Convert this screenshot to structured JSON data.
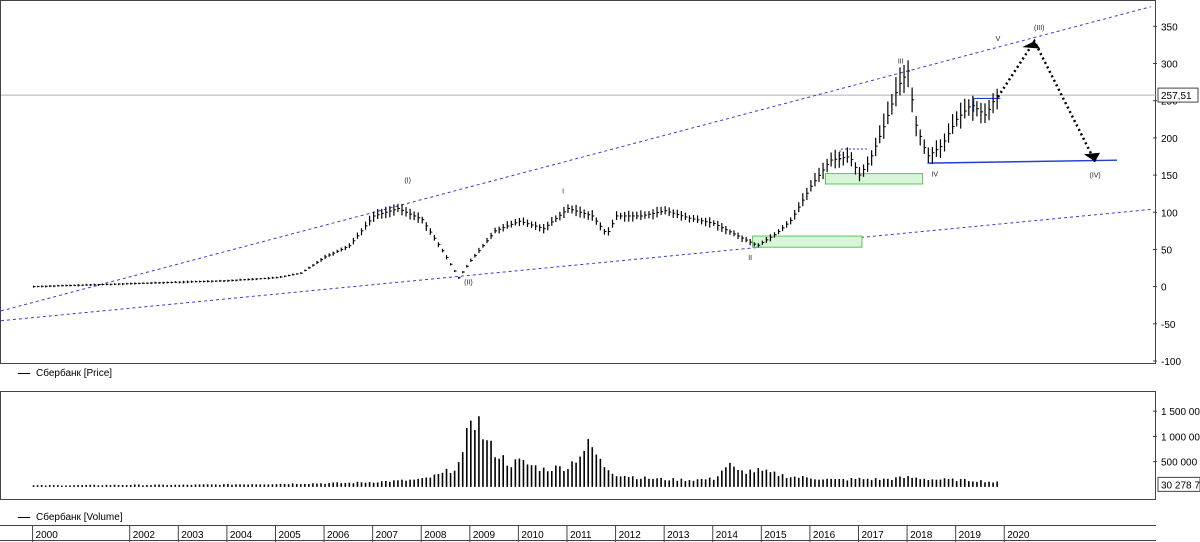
{
  "chart_data": [
    {
      "type": "bar",
      "series_name": "Сбербанк [Price]",
      "ylim": [
        -100,
        380
      ],
      "yticks": [
        -100,
        -50,
        0,
        50,
        100,
        150,
        200,
        250,
        300,
        350
      ],
      "ytick_labels": [
        "-100",
        "-50",
        "0",
        "50",
        "100",
        "150",
        "200",
        "250",
        "300",
        "350"
      ],
      "last_price_label": "257,51",
      "last_price": 257.51,
      "x": [
        2000.0,
        2001.0,
        2002.0,
        2003.0,
        2004.0,
        2005.0,
        2005.5,
        2006.0,
        2006.5,
        2007.0,
        2007.5,
        2008.0,
        2008.4,
        2008.75,
        2009.0,
        2009.5,
        2010.0,
        2010.5,
        2011.0,
        2011.5,
        2011.8,
        2012.0,
        2012.5,
        2013.0,
        2013.5,
        2014.0,
        2014.5,
        2014.9,
        2015.3,
        2015.6,
        2016.0,
        2016.4,
        2016.8,
        2017.0,
        2017.2,
        2017.5,
        2017.8,
        2018.0,
        2018.15,
        2018.4,
        2018.7,
        2019.0,
        2019.3,
        2019.6,
        2019.8
      ],
      "values": [
        0,
        2,
        4,
        6,
        8,
        12,
        18,
        40,
        55,
        95,
        105,
        90,
        50,
        12,
        35,
        75,
        88,
        78,
        105,
        95,
        70,
        95,
        95,
        102,
        92,
        85,
        68,
        55,
        72,
        90,
        135,
        170,
        175,
        150,
        168,
        215,
        270,
        290,
        220,
        175,
        190,
        225,
        245,
        230,
        255
      ],
      "wave_labels": [
        "(I)",
        "(II)",
        "I",
        "II",
        "III",
        "IV",
        "V",
        "(III)",
        "(IV)"
      ],
      "wave_label_x": [
        2007.7,
        2008.95,
        2010.9,
        2014.75,
        2017.85,
        2018.55,
        2019.85,
        2020.7,
        2021.85
      ],
      "wave_label_y": [
        140,
        3,
        125,
        36,
        300,
        148,
        330,
        345,
        147
      ]
    },
    {
      "type": "bar",
      "series_name": "Сбербанк [Volume]",
      "ylim": [
        -200000,
        1800000
      ],
      "yticks": [
        500000,
        1000000,
        1500000
      ],
      "ytick_labels": [
        "500 000",
        "1 000 000",
        "1 500 000"
      ],
      "last_volume_label": "30 278 7",
      "x": [
        2000.0,
        2001.0,
        2002.0,
        2003.0,
        2004.0,
        2005.0,
        2005.8,
        2006.5,
        2007.0,
        2007.5,
        2008.0,
        2008.4,
        2008.7,
        2008.85,
        2009.0,
        2009.15,
        2009.3,
        2009.5,
        2009.8,
        2010.0,
        2010.5,
        2011.0,
        2011.3,
        2011.45,
        2011.7,
        2012.0,
        2012.5,
        2013.0,
        2013.5,
        2014.0,
        2014.3,
        2014.5,
        2014.9,
        2015.3,
        2015.6,
        2016.0,
        2016.5,
        2017.0,
        2017.5,
        2018.0,
        2018.5,
        2019.0,
        2019.5,
        2019.8
      ],
      "values": [
        30000,
        35000,
        40000,
        40000,
        50000,
        60000,
        70000,
        80000,
        100000,
        120000,
        150000,
        250000,
        400000,
        600000,
        1450000,
        1300000,
        900000,
        700000,
        450000,
        500000,
        350000,
        400000,
        700000,
        850000,
        450000,
        250000,
        180000,
        150000,
        140000,
        160000,
        450000,
        300000,
        320000,
        250000,
        200000,
        180000,
        140000,
        160000,
        150000,
        190000,
        150000,
        140000,
        120000,
        90000
      ]
    }
  ],
  "time_axis": {
    "years": [
      2000,
      2002,
      2003,
      2004,
      2005,
      2006,
      2007,
      2008,
      2009,
      2010,
      2011,
      2012,
      2013,
      2014,
      2015,
      2016,
      2017,
      2018,
      2019,
      2020
    ],
    "labels": [
      "2000",
      "2002",
      "2003",
      "2004",
      "2005",
      "2006",
      "2007",
      "2008",
      "2009",
      "2010",
      "2011",
      "2012",
      "2013",
      "2014",
      "2015",
      "2016",
      "2017",
      "2018",
      "2019",
      "2020"
    ]
  },
  "legend": {
    "price": "Сбербанк [Price]",
    "volume": "Сбербанк [Volume]"
  },
  "colors": {
    "price_bars": "#000000",
    "channel_lines": "#3b3bd6",
    "support_line": "#2040d0",
    "zone_fill": "#d8f5d8",
    "zone_stroke": "#5ac85a",
    "forecast_arrow": "#000000",
    "last_price_line": "#b0b0b0"
  }
}
